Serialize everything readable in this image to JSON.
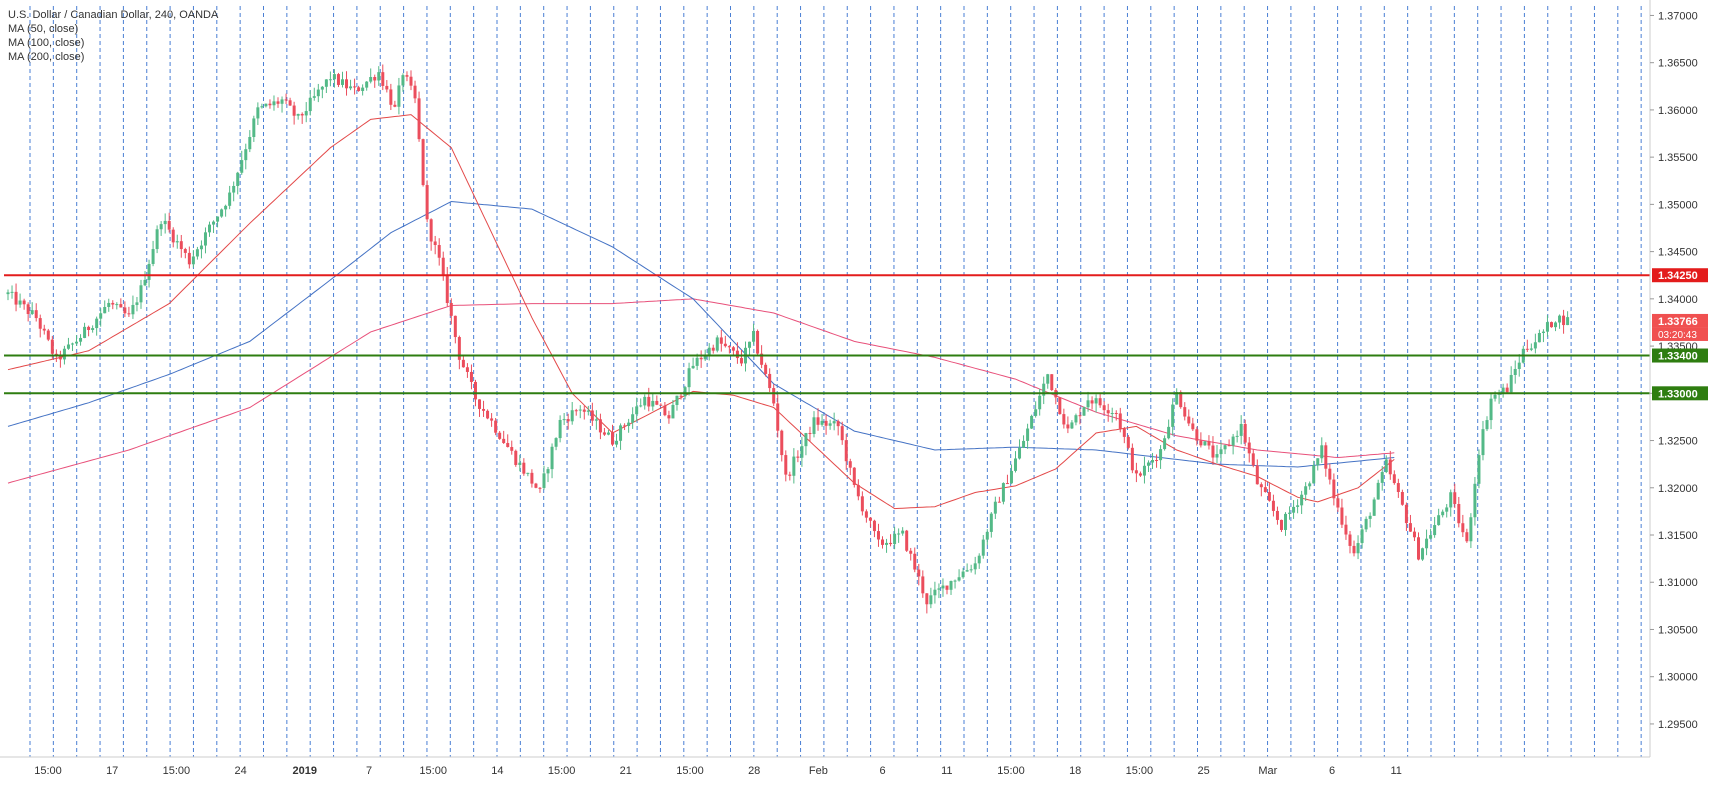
{
  "chart_data": {
    "type": "candlestick",
    "title": "U.S. Dollar / Canadian Dollar, 240, OANDA",
    "indicators": [
      "MA (50, close)",
      "MA (100, close)",
      "MA (200, close)"
    ],
    "ylim": [
      1.2915,
      1.371
    ],
    "y_ticks": [
      "1.37000",
      "1.36500",
      "1.36000",
      "1.35500",
      "1.35000",
      "1.34500",
      "1.34000",
      "1.33500",
      "1.33000",
      "1.32500",
      "1.32000",
      "1.31500",
      "1.31000",
      "1.30500",
      "1.30000",
      "1.29500"
    ],
    "x_ticks": [
      "15:00",
      "17",
      "15:00",
      "24",
      "2019",
      "7",
      "15:00",
      "14",
      "15:00",
      "21",
      "15:00",
      "28",
      "Feb",
      "6",
      "11",
      "15:00",
      "18",
      "15:00",
      "25",
      "Mar",
      "6",
      "11"
    ],
    "levels": [
      {
        "label": "1.34250",
        "value": 1.3425,
        "color": "#e31c1c"
      },
      {
        "label": "1.33400",
        "value": 1.334,
        "color": "#2e7d10"
      },
      {
        "label": "1.33000",
        "value": 1.33,
        "color": "#2e7d10"
      }
    ],
    "last_price": {
      "label": "1.33766",
      "value": 1.33766,
      "countdown": "03:20:43",
      "color": "#f05050"
    },
    "colors": {
      "up": "#53b987",
      "down": "#eb4d5c",
      "ma50": "#e34848",
      "ma100": "#4472c4",
      "ma200": "#e8507a",
      "grid": "#4a7fd4"
    },
    "ma50_key": [
      [
        0,
        1.3325
      ],
      [
        20,
        1.3345
      ],
      [
        40,
        1.3395
      ],
      [
        60,
        1.348
      ],
      [
        80,
        1.356
      ],
      [
        90,
        1.359
      ],
      [
        100,
        1.3595
      ],
      [
        110,
        1.356
      ],
      [
        120,
        1.347
      ],
      [
        130,
        1.338
      ],
      [
        140,
        1.33
      ],
      [
        150,
        1.3258
      ],
      [
        160,
        1.328
      ],
      [
        170,
        1.3302
      ],
      [
        180,
        1.3298
      ],
      [
        190,
        1.3285
      ],
      [
        200,
        1.3245
      ],
      [
        210,
        1.3205
      ],
      [
        220,
        1.3178
      ],
      [
        230,
        1.318
      ],
      [
        240,
        1.3195
      ],
      [
        250,
        1.3202
      ],
      [
        260,
        1.322
      ],
      [
        270,
        1.3258
      ],
      [
        280,
        1.3265
      ],
      [
        290,
        1.324
      ],
      [
        300,
        1.3225
      ],
      [
        310,
        1.3212
      ],
      [
        320,
        1.319
      ],
      [
        325,
        1.3185
      ],
      [
        335,
        1.32
      ],
      [
        344,
        1.323
      ]
    ],
    "ma100_key": [
      [
        0,
        1.3265
      ],
      [
        20,
        1.329
      ],
      [
        40,
        1.332
      ],
      [
        60,
        1.3355
      ],
      [
        80,
        1.342
      ],
      [
        95,
        1.347
      ],
      [
        110,
        1.3503
      ],
      [
        130,
        1.3495
      ],
      [
        150,
        1.3455
      ],
      [
        170,
        1.34
      ],
      [
        190,
        1.331
      ],
      [
        210,
        1.326
      ],
      [
        230,
        1.324
      ],
      [
        250,
        1.3243
      ],
      [
        270,
        1.324
      ],
      [
        290,
        1.323
      ],
      [
        300,
        1.3225
      ],
      [
        320,
        1.3222
      ],
      [
        344,
        1.3232
      ]
    ],
    "ma200_key": [
      [
        0,
        1.3205
      ],
      [
        30,
        1.324
      ],
      [
        60,
        1.3285
      ],
      [
        90,
        1.3365
      ],
      [
        110,
        1.3393
      ],
      [
        130,
        1.3395
      ],
      [
        150,
        1.3395
      ],
      [
        170,
        1.34
      ],
      [
        190,
        1.3385
      ],
      [
        210,
        1.3355
      ],
      [
        230,
        1.3338
      ],
      [
        250,
        1.3315
      ],
      [
        270,
        1.328
      ],
      [
        290,
        1.3255
      ],
      [
        310,
        1.324
      ],
      [
        330,
        1.3232
      ],
      [
        344,
        1.3237
      ]
    ],
    "close_key": [
      [
        0,
        1.3405
      ],
      [
        7,
        1.338
      ],
      [
        12,
        1.3335
      ],
      [
        18,
        1.336
      ],
      [
        25,
        1.3395
      ],
      [
        30,
        1.338
      ],
      [
        33,
        1.341
      ],
      [
        38,
        1.3485
      ],
      [
        45,
        1.344
      ],
      [
        55,
        1.351
      ],
      [
        62,
        1.36
      ],
      [
        68,
        1.361
      ],
      [
        72,
        1.359
      ],
      [
        80,
        1.3635
      ],
      [
        86,
        1.362
      ],
      [
        92,
        1.364
      ],
      [
        96,
        1.36
      ],
      [
        98,
        1.364
      ],
      [
        101,
        1.361
      ],
      [
        104,
        1.348
      ],
      [
        107,
        1.344
      ],
      [
        112,
        1.334
      ],
      [
        116,
        1.3295
      ],
      [
        120,
        1.327
      ],
      [
        126,
        1.323
      ],
      [
        132,
        1.3195
      ],
      [
        137,
        1.327
      ],
      [
        142,
        1.3285
      ],
      [
        150,
        1.325
      ],
      [
        158,
        1.3295
      ],
      [
        164,
        1.3275
      ],
      [
        170,
        1.333
      ],
      [
        176,
        1.3355
      ],
      [
        182,
        1.3335
      ],
      [
        185,
        1.336
      ],
      [
        190,
        1.329
      ],
      [
        193,
        1.321
      ],
      [
        200,
        1.327
      ],
      [
        206,
        1.3265
      ],
      [
        210,
        1.32
      ],
      [
        216,
        1.314
      ],
      [
        222,
        1.315
      ],
      [
        228,
        1.308
      ],
      [
        235,
        1.3105
      ],
      [
        240,
        1.312
      ],
      [
        245,
        1.318
      ],
      [
        252,
        1.325
      ],
      [
        258,
        1.332
      ],
      [
        263,
        1.326
      ],
      [
        268,
        1.3295
      ],
      [
        275,
        1.328
      ],
      [
        280,
        1.321
      ],
      [
        286,
        1.324
      ],
      [
        290,
        1.33
      ],
      [
        294,
        1.326
      ],
      [
        300,
        1.323
      ],
      [
        306,
        1.3265
      ],
      [
        310,
        1.3205
      ],
      [
        316,
        1.316
      ],
      [
        322,
        1.32
      ],
      [
        326,
        1.324
      ],
      [
        329,
        1.319
      ],
      [
        334,
        1.313
      ],
      [
        338,
        1.3175
      ],
      [
        342,
        1.3225
      ],
      [
        346,
        1.318
      ],
      [
        350,
        1.313
      ],
      [
        354,
        1.316
      ],
      [
        358,
        1.319
      ],
      [
        362,
        1.314
      ],
      [
        365,
        1.324
      ],
      [
        368,
        1.3295
      ],
      [
        372,
        1.3305
      ],
      [
        376,
        1.3345
      ],
      [
        380,
        1.336
      ],
      [
        384,
        1.338
      ],
      [
        387,
        1.3377
      ]
    ]
  }
}
